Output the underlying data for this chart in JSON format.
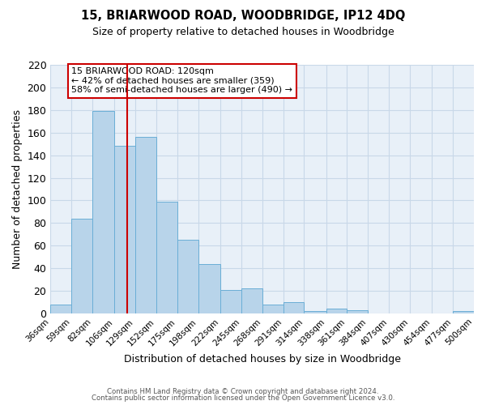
{
  "title": "15, BRIARWOOD ROAD, WOODBRIDGE, IP12 4DQ",
  "subtitle": "Size of property relative to detached houses in Woodbridge",
  "xlabel": "Distribution of detached houses by size in Woodbridge",
  "ylabel": "Number of detached properties",
  "bin_edges": [
    36,
    59,
    82,
    106,
    129,
    152,
    175,
    198,
    222,
    245,
    268,
    291,
    314,
    338,
    361,
    384,
    407,
    430,
    454,
    477,
    500
  ],
  "bin_labels": [
    "36sqm",
    "59sqm",
    "82sqm",
    "106sqm",
    "129sqm",
    "152sqm",
    "175sqm",
    "198sqm",
    "222sqm",
    "245sqm",
    "268sqm",
    "291sqm",
    "314sqm",
    "338sqm",
    "361sqm",
    "384sqm",
    "407sqm",
    "430sqm",
    "454sqm",
    "477sqm",
    "500sqm"
  ],
  "bar_heights": [
    8,
    84,
    179,
    148,
    156,
    99,
    65,
    44,
    21,
    22,
    8,
    10,
    2,
    4,
    3,
    0,
    0,
    0,
    0,
    2
  ],
  "bar_color": "#b8d4ea",
  "bar_edge_color": "#6aaed6",
  "vline_x": 120,
  "vline_color": "#cc0000",
  "ylim": [
    0,
    220
  ],
  "yticks": [
    0,
    20,
    40,
    60,
    80,
    100,
    120,
    140,
    160,
    180,
    200,
    220
  ],
  "annotation_title": "15 BRIARWOOD ROAD: 120sqm",
  "annotation_line1": "← 42% of detached houses are smaller (359)",
  "annotation_line2": "58% of semi-detached houses are larger (490) →",
  "annotation_box_color": "#ffffff",
  "annotation_box_edge": "#cc0000",
  "grid_color": "#c8d8e8",
  "axes_bg": "#e8f0f8",
  "footer_line1": "Contains HM Land Registry data © Crown copyright and database right 2024.",
  "footer_line2": "Contains public sector information licensed under the Open Government Licence v3.0."
}
